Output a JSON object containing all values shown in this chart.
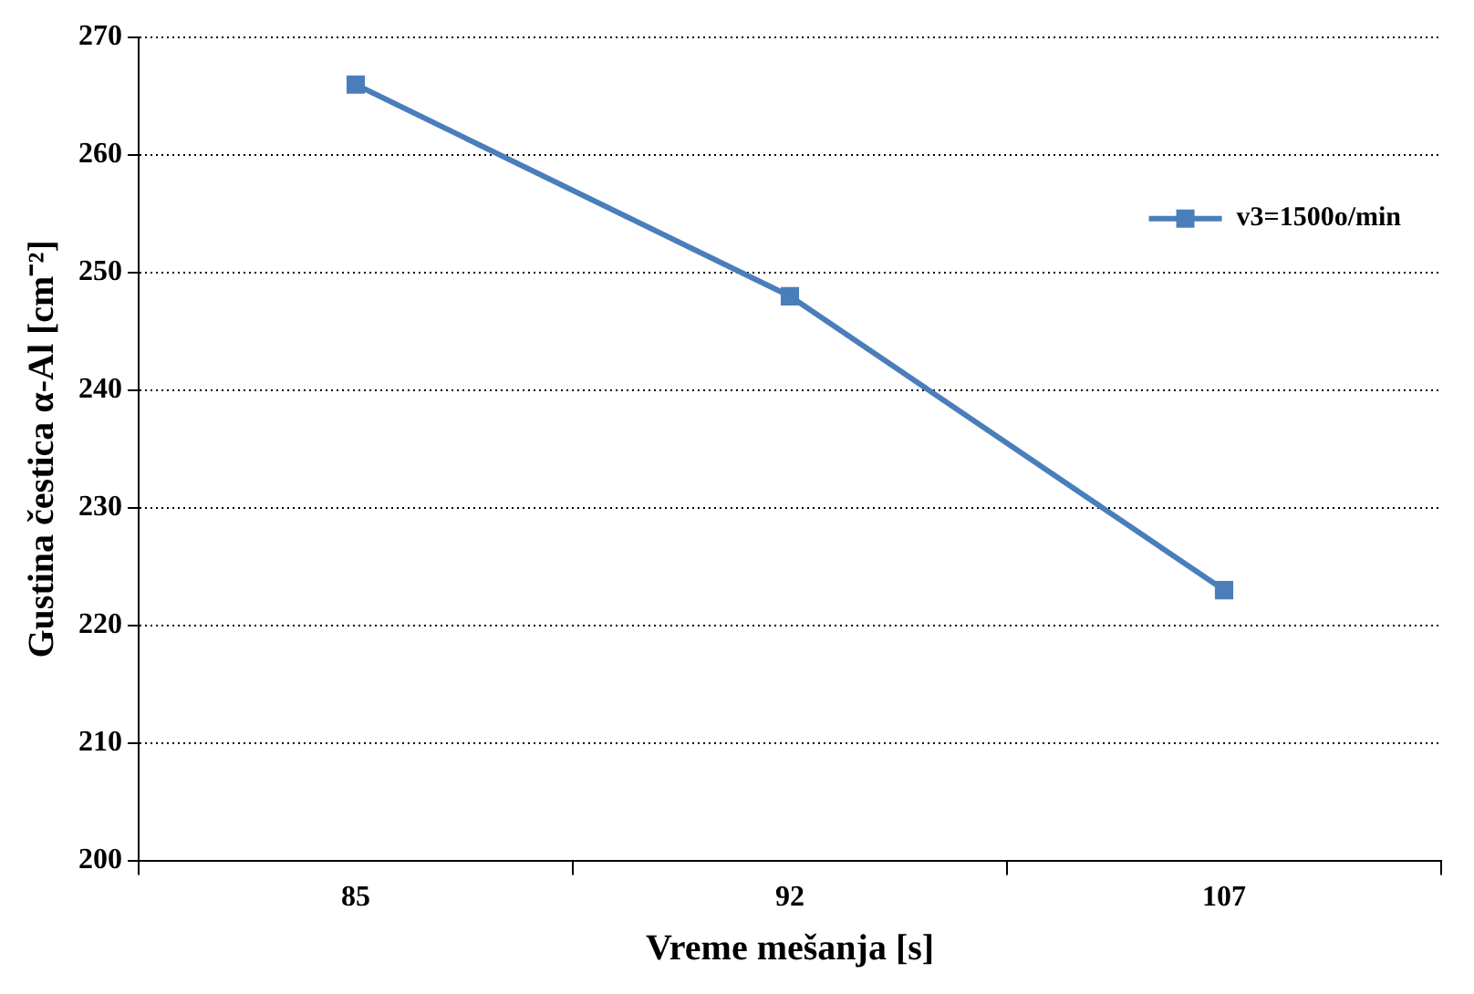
{
  "chart_data": {
    "type": "line",
    "xlabel": "Vreme mešanja [s]",
    "ylabel": "Gustina čestica α-Al [cm⁻²]",
    "categories": [
      "85",
      "92",
      "107"
    ],
    "series": [
      {
        "name": "v3=1500o/min",
        "color": "#4a7ebb",
        "values": [
          266,
          248,
          223
        ]
      }
    ],
    "ylim": [
      200,
      270
    ],
    "yticks": [
      200,
      210,
      220,
      230,
      240,
      250,
      260,
      270
    ],
    "grid": "y",
    "legend": "top right",
    "marker": "square",
    "line_style": "solid"
  }
}
